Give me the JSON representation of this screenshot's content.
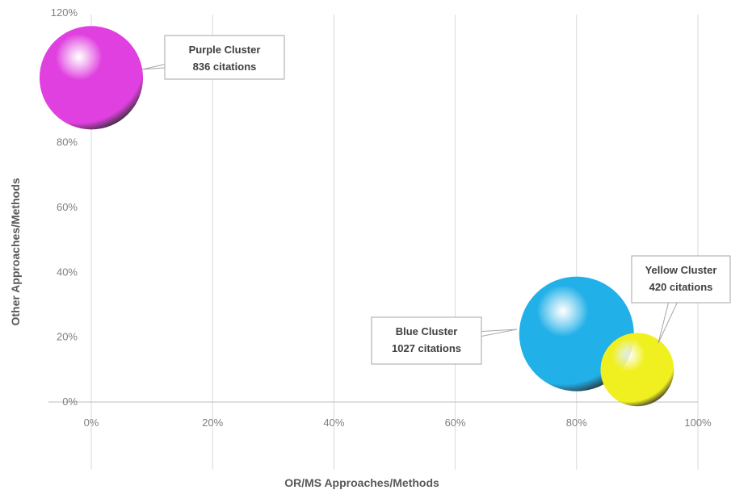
{
  "chart_data": {
    "type": "scatter",
    "subtype": "bubble",
    "title": "",
    "xlabel": "OR/MS Approaches/Methods",
    "ylabel": "Other Approaches/Methods",
    "xlim": [
      0,
      1.0
    ],
    "ylim": [
      0,
      1.2
    ],
    "xticks": [
      0,
      0.2,
      0.4,
      0.6,
      0.8,
      1.0
    ],
    "yticks": [
      0,
      0.2,
      0.4,
      0.6,
      0.8,
      1.0,
      1.2
    ],
    "xtick_labels": [
      "0%",
      "20%",
      "40%",
      "60%",
      "80%",
      "100%"
    ],
    "ytick_labels": [
      "0%",
      "20%",
      "40%",
      "60%",
      "80%",
      "100%",
      "120%"
    ],
    "grid": "vertical",
    "legend": "none",
    "series": [
      {
        "name": "Purple Cluster",
        "x": 0.0,
        "y": 1.0,
        "citations": 836,
        "label_lines": [
          "Purple Cluster",
          "836 citations"
        ],
        "color": "#e040e0"
      },
      {
        "name": "Blue Cluster",
        "x": 0.8,
        "y": 0.21,
        "citations": 1027,
        "label_lines": [
          "Blue Cluster",
          "1027 citations"
        ],
        "color": "#22b0e8"
      },
      {
        "name": "Yellow Cluster",
        "x": 0.9,
        "y": 0.1,
        "citations": 420,
        "label_lines": [
          "Yellow Cluster",
          "420 citations"
        ],
        "color": "#f0f020"
      }
    ]
  }
}
